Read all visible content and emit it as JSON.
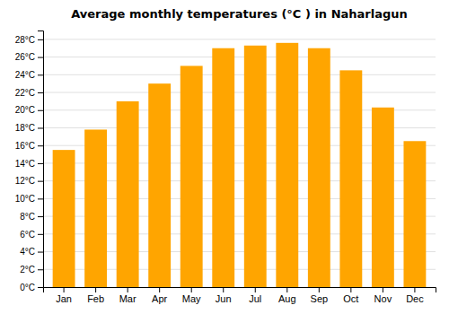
{
  "chart_data": {
    "type": "bar",
    "title": "Average monthly temperatures (°C ) in Naharlagun",
    "categories": [
      "Jan",
      "Feb",
      "Mar",
      "Apr",
      "May",
      "Jun",
      "Jul",
      "Aug",
      "Sep",
      "Oct",
      "Nov",
      "Dec"
    ],
    "values": [
      15.5,
      17.8,
      21.0,
      23.0,
      25.0,
      27.0,
      27.3,
      27.6,
      27.0,
      24.5,
      20.3,
      16.5
    ],
    "color": "#FFA500",
    "ylim": [
      0,
      29
    ],
    "yticks": [
      {
        "value": 0,
        "label": "0°C"
      },
      {
        "value": 2,
        "label": "2°C"
      },
      {
        "value": 4,
        "label": "4°C"
      },
      {
        "value": 6,
        "label": "6°C"
      },
      {
        "value": 8,
        "label": "8°C"
      },
      {
        "value": 10,
        "label": "10°C"
      },
      {
        "value": 12,
        "label": "12°C"
      },
      {
        "value": 14,
        "label": "14°C"
      },
      {
        "value": 16,
        "label": "16°C"
      },
      {
        "value": 18,
        "label": "18°C"
      },
      {
        "value": 20,
        "label": "20°C"
      },
      {
        "value": 22,
        "label": "22°C"
      },
      {
        "value": 24,
        "label": "24°C"
      },
      {
        "value": 26,
        "label": "26°C"
      },
      {
        "value": 28,
        "label": "28°C"
      }
    ],
    "grid": true
  }
}
